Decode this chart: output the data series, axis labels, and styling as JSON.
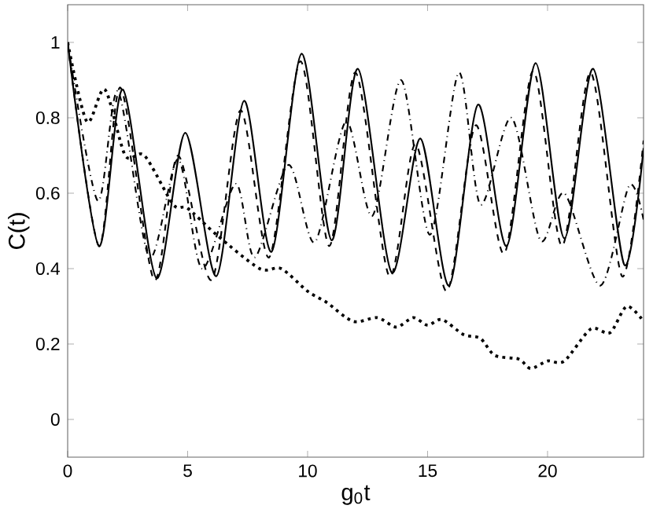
{
  "chart_data": {
    "type": "line",
    "xlabel": "g$_{0}$t",
    "ylabel": "C(t)",
    "xlim": [
      0,
      24
    ],
    "ylim": [
      -0.1,
      1.1
    ],
    "xticks": [
      0,
      5,
      10,
      15,
      20
    ],
    "yticks": [
      0,
      0.2,
      0.4,
      0.6,
      0.8,
      1
    ],
    "grid": false,
    "marker": "none",
    "series": [
      {
        "color": "#000000",
        "line_style": "solid",
        "x": [
          0,
          1.3,
          2.3,
          3.7,
          4.9,
          6.2,
          7.35,
          8.5,
          9.75,
          11.0,
          12.1,
          13.5,
          14.7,
          15.9,
          17.1,
          18.3,
          19.5,
          20.7,
          21.9,
          23.2,
          24
        ],
        "values": [
          1.0,
          0.46,
          0.875,
          0.375,
          0.76,
          0.38,
          0.845,
          0.445,
          0.97,
          0.475,
          0.93,
          0.39,
          0.745,
          0.355,
          0.835,
          0.46,
          0.945,
          0.48,
          0.93,
          0.41,
          0.72
        ]
      },
      {
        "color": "#000000",
        "line_style": "dashed",
        "x": [
          0,
          1.3,
          2.2,
          3.6,
          4.6,
          6.0,
          7.2,
          8.4,
          9.7,
          10.9,
          12.0,
          13.4,
          14.5,
          15.8,
          17.0,
          18.2,
          19.4,
          20.6,
          21.8,
          23.1,
          24
        ],
        "values": [
          1.0,
          0.46,
          0.88,
          0.37,
          0.7,
          0.37,
          0.82,
          0.43,
          0.95,
          0.46,
          0.92,
          0.38,
          0.73,
          0.34,
          0.78,
          0.44,
          0.925,
          0.46,
          0.92,
          0.38,
          0.74
        ]
      },
      {
        "color": "#000000",
        "line_style": "dashdot",
        "x": [
          0,
          1.25,
          2.1,
          3.4,
          4.6,
          5.6,
          7.0,
          7.8,
          9.2,
          10.3,
          11.6,
          12.7,
          13.9,
          15.1,
          16.3,
          17.2,
          18.5,
          19.7,
          20.7,
          22.2,
          23.4,
          24
        ],
        "values": [
          1.0,
          0.58,
          0.87,
          0.43,
          0.69,
          0.4,
          0.625,
          0.43,
          0.675,
          0.47,
          0.79,
          0.54,
          0.9,
          0.49,
          0.92,
          0.57,
          0.8,
          0.475,
          0.6,
          0.355,
          0.62,
          0.53
        ]
      },
      {
        "color": "#000000",
        "line_style": "dotted",
        "x": [
          0,
          0.8,
          1.55,
          2.4,
          3.2,
          4.4,
          5.0,
          6.2,
          8.0,
          8.9,
          10.0,
          10.8,
          11.9,
          12.9,
          13.7,
          14.4,
          15.0,
          15.6,
          16.5,
          17.2,
          17.8,
          18.8,
          19.3,
          20.0,
          20.7,
          21.8,
          22.6,
          23.3,
          24
        ],
        "values": [
          1.0,
          0.79,
          0.875,
          0.7,
          0.7,
          0.57,
          0.56,
          0.49,
          0.4,
          0.4,
          0.34,
          0.31,
          0.26,
          0.27,
          0.245,
          0.27,
          0.25,
          0.265,
          0.225,
          0.215,
          0.17,
          0.16,
          0.135,
          0.155,
          0.155,
          0.24,
          0.23,
          0.3,
          0.26
        ]
      }
    ]
  }
}
